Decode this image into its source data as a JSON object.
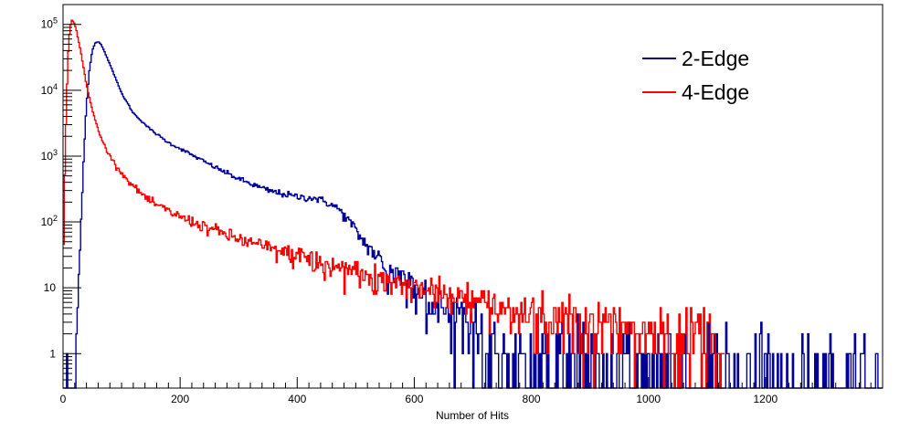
{
  "chart_data": {
    "type": "line",
    "title": "",
    "xlabel": "Number of Hits",
    "ylabel": "",
    "xlim": [
      0,
      1400
    ],
    "ylim": [
      0.3,
      200000
    ],
    "yscale": "log",
    "grid": false,
    "legend_position": "top-right",
    "x_ticks": [
      {
        "value": 0,
        "label": "0"
      },
      {
        "value": 200,
        "label": "200"
      },
      {
        "value": 400,
        "label": "400"
      },
      {
        "value": 600,
        "label": "600"
      },
      {
        "value": 800,
        "label": "800"
      },
      {
        "value": 1000,
        "label": "1000"
      },
      {
        "value": 1200,
        "label": "1200"
      }
    ],
    "y_ticks": [
      {
        "value": 1,
        "base": "1",
        "exp": ""
      },
      {
        "value": 10,
        "base": "10",
        "exp": ""
      },
      {
        "value": 100,
        "base": "10",
        "exp": "2"
      },
      {
        "value": 1000,
        "base": "10",
        "exp": "3"
      },
      {
        "value": 10000,
        "base": "10",
        "exp": "4"
      },
      {
        "value": 100000,
        "base": "10",
        "exp": "5"
      }
    ],
    "series": [
      {
        "name": "2-Edge",
        "color": "#000099",
        "x": [
          0,
          10,
          15,
          20,
          25,
          30,
          35,
          40,
          45,
          50,
          55,
          60,
          65,
          70,
          80,
          90,
          100,
          120,
          150,
          180,
          200,
          250,
          300,
          350,
          400,
          430,
          450,
          470,
          490,
          510,
          530,
          550,
          580,
          600,
          620,
          650,
          680,
          700,
          720,
          740,
          760,
          780,
          800,
          850,
          900,
          950,
          1000,
          1100,
          1200,
          1300,
          1400
        ],
        "values": [
          0,
          0,
          0,
          0.5,
          5,
          60,
          800,
          6000,
          20000,
          40000,
          52000,
          55000,
          50000,
          40000,
          25000,
          15000,
          9000,
          4500,
          2500,
          1600,
          1300,
          750,
          450,
          300,
          240,
          230,
          200,
          160,
          100,
          55,
          35,
          22,
          14,
          11,
          8,
          5,
          3,
          2,
          1.5,
          1.2,
          1,
          1,
          1,
          0.9,
          0.8,
          0.7,
          0.6,
          0.5,
          0.45,
          0.4,
          0.35
        ]
      },
      {
        "name": "4-Edge",
        "color": "#ff0000",
        "x": [
          0,
          2,
          5,
          8,
          10,
          13,
          15,
          18,
          20,
          23,
          25,
          30,
          35,
          40,
          50,
          60,
          70,
          80,
          100,
          120,
          150,
          200,
          250,
          300,
          350,
          400,
          450,
          500,
          550,
          600,
          650,
          700,
          750,
          800,
          850,
          900,
          1000,
          1050,
          1100,
          1130
        ],
        "values": [
          10,
          200,
          3000,
          25000,
          60000,
          100000,
          115000,
          110000,
          100000,
          80000,
          65000,
          40000,
          22000,
          12000,
          5000,
          2500,
          1500,
          1000,
          550,
          350,
          200,
          120,
          80,
          55,
          40,
          30,
          22,
          17,
          14,
          11,
          8,
          6.5,
          5,
          4,
          3.5,
          3,
          2.5,
          2.2,
          2,
          1.8
        ]
      }
    ]
  }
}
